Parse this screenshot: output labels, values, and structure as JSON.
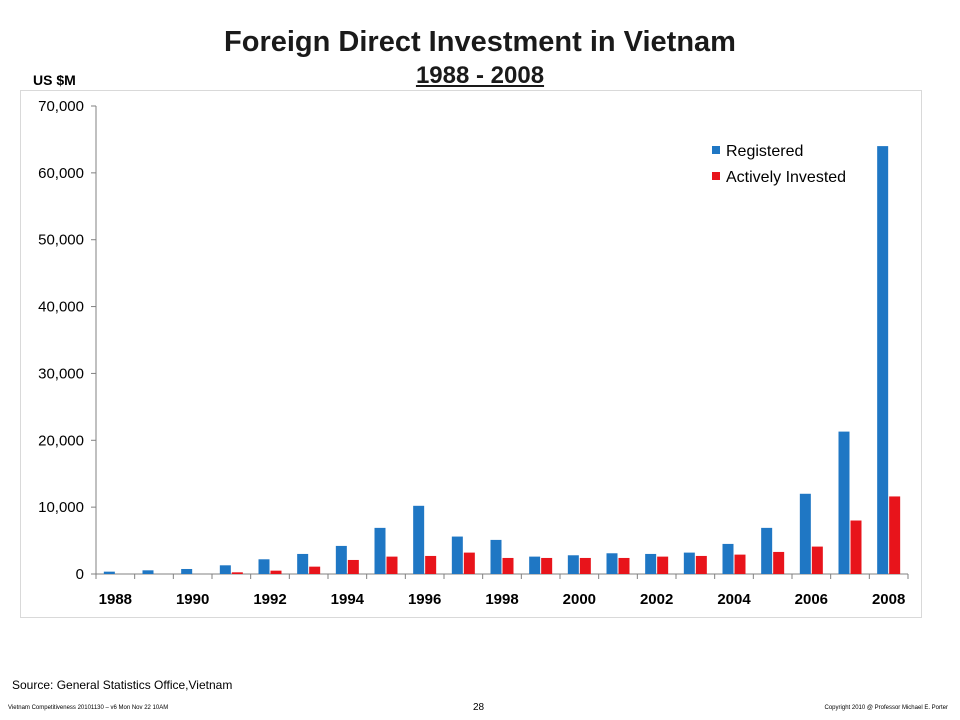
{
  "header": {
    "title": "Foreign Direct Investment in Vietnam",
    "subtitle": "1988 - 2008",
    "units": "US $M"
  },
  "chart_data": {
    "type": "bar",
    "x_tick_labels": [
      "1988",
      "1990",
      "1992",
      "1994",
      "1996",
      "1998",
      "2000",
      "2002",
      "2004",
      "2006",
      "2008"
    ],
    "categories": [
      "1988",
      "1989",
      "1990",
      "1991",
      "1992",
      "1993",
      "1994",
      "1995",
      "1996",
      "1997",
      "1998",
      "1999",
      "2000",
      "2001",
      "2002",
      "2003",
      "2004",
      "2005",
      "2006",
      "2007",
      "2008"
    ],
    "y_ticks": [
      "0",
      "10,000",
      "20,000",
      "30,000",
      "40,000",
      "50,000",
      "60,000",
      "70,000"
    ],
    "ylim": [
      0,
      70000
    ],
    "grid": false,
    "legend_position": "top-right",
    "series": [
      {
        "name": "Registered",
        "color": "#1f77c4",
        "values": [
          350,
          550,
          750,
          1300,
          2200,
          3000,
          4200,
          6900,
          10200,
          5600,
          5100,
          2600,
          2800,
          3100,
          3000,
          3200,
          4500,
          6900,
          12000,
          21300,
          64000
        ]
      },
      {
        "name": "Actively Invested",
        "color": "#e8141b",
        "values": [
          0,
          0,
          0,
          250,
          500,
          1100,
          2100,
          2600,
          2700,
          3200,
          2400,
          2400,
          2400,
          2400,
          2600,
          2700,
          2900,
          3300,
          4100,
          8000,
          11600
        ]
      }
    ]
  },
  "footer": {
    "source": "Source: General Statistics Office,Vietnam",
    "left": "Vietnam Competitiveness 20101130 – v6 Mon Nov 22 10AM",
    "page": "28",
    "right": "Copyright 2010 @ Professor Michael E. Porter"
  }
}
